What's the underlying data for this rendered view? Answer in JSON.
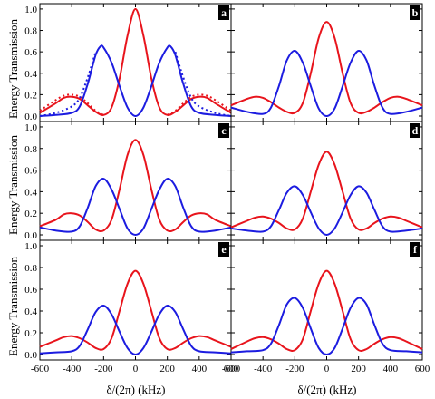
{
  "ylabel": "Energy Transmission",
  "xlabel": "δ/(2π) (kHz)",
  "xticks": [
    -600,
    -400,
    -200,
    0,
    200,
    400,
    600
  ],
  "yticks": [
    "0.0",
    "0.2",
    "0.4",
    "0.6",
    "0.8",
    "1.0"
  ],
  "colors": {
    "red": "#e8141c",
    "blue": "#1c1ce0"
  },
  "chart_data": [
    {
      "type": "line",
      "panel": "a",
      "xlim": [
        -600,
        600
      ],
      "ylim": [
        0,
        1.05
      ],
      "series": [
        {
          "color": "red",
          "style": "solid",
          "x": [
            -600,
            -500,
            -450,
            -400,
            -350,
            -300,
            -250,
            -200,
            -150,
            -100,
            -50,
            0,
            50,
            100,
            150,
            200,
            250,
            300,
            350,
            400,
            450,
            500,
            600
          ],
          "values": [
            0.03,
            0.12,
            0.17,
            0.18,
            0.16,
            0.1,
            0.04,
            0.01,
            0.08,
            0.35,
            0.75,
            1.0,
            0.75,
            0.35,
            0.08,
            0.01,
            0.04,
            0.1,
            0.16,
            0.18,
            0.17,
            0.12,
            0.03
          ]
        },
        {
          "color": "red",
          "style": "dotted",
          "x": [
            -600,
            -500,
            -450,
            -400,
            -350,
            -300,
            -250,
            -200,
            200,
            250,
            300,
            350,
            400,
            450,
            500,
            600
          ],
          "values": [
            0.05,
            0.15,
            0.19,
            0.2,
            0.18,
            0.12,
            0.05,
            0.01,
            0.01,
            0.05,
            0.12,
            0.18,
            0.2,
            0.19,
            0.15,
            0.05
          ]
        },
        {
          "color": "blue",
          "style": "solid",
          "x": [
            -600,
            -500,
            -400,
            -350,
            -300,
            -250,
            -220,
            -200,
            -150,
            -100,
            -50,
            0,
            50,
            100,
            150,
            200,
            220,
            250,
            300,
            350,
            400,
            500,
            600
          ],
          "values": [
            0.0,
            0.01,
            0.03,
            0.09,
            0.3,
            0.57,
            0.65,
            0.64,
            0.5,
            0.28,
            0.08,
            0.0,
            0.08,
            0.28,
            0.5,
            0.64,
            0.65,
            0.57,
            0.3,
            0.09,
            0.03,
            0.01,
            0.0
          ]
        },
        {
          "color": "blue",
          "style": "dotted",
          "x": [
            -600,
            -500,
            -400,
            -350,
            -300,
            -250,
            250,
            300,
            350,
            400,
            500,
            600
          ],
          "values": [
            0.0,
            0.03,
            0.09,
            0.17,
            0.36,
            0.6,
            0.6,
            0.36,
            0.17,
            0.09,
            0.03,
            0.0
          ]
        }
      ]
    },
    {
      "type": "line",
      "panel": "b",
      "xlim": [
        -600,
        600
      ],
      "ylim": [
        0,
        1.05
      ],
      "series": [
        {
          "color": "red",
          "style": "solid",
          "x": [
            -600,
            -500,
            -450,
            -400,
            -350,
            -300,
            -250,
            -200,
            -150,
            -100,
            -50,
            0,
            50,
            100,
            150,
            200,
            250,
            300,
            350,
            400,
            450,
            500,
            600
          ],
          "values": [
            0.1,
            0.16,
            0.18,
            0.17,
            0.13,
            0.08,
            0.04,
            0.03,
            0.12,
            0.4,
            0.73,
            0.88,
            0.73,
            0.4,
            0.12,
            0.03,
            0.04,
            0.08,
            0.13,
            0.17,
            0.18,
            0.16,
            0.1
          ]
        },
        {
          "color": "blue",
          "style": "solid",
          "x": [
            -600,
            -500,
            -400,
            -350,
            -300,
            -250,
            -200,
            -150,
            -100,
            -50,
            0,
            50,
            100,
            150,
            200,
            250,
            300,
            350,
            400,
            500,
            600
          ],
          "values": [
            0.08,
            0.04,
            0.02,
            0.08,
            0.28,
            0.52,
            0.61,
            0.5,
            0.28,
            0.07,
            0.0,
            0.07,
            0.28,
            0.5,
            0.61,
            0.52,
            0.28,
            0.08,
            0.02,
            0.04,
            0.08
          ]
        }
      ]
    },
    {
      "type": "line",
      "panel": "c",
      "xlim": [
        -600,
        600
      ],
      "ylim": [
        0,
        1.05
      ],
      "series": [
        {
          "color": "red",
          "style": "solid",
          "x": [
            -600,
            -500,
            -450,
            -400,
            -350,
            -300,
            -250,
            -200,
            -150,
            -100,
            -50,
            0,
            50,
            100,
            150,
            200,
            250,
            300,
            350,
            400,
            450,
            500,
            600
          ],
          "values": [
            0.08,
            0.14,
            0.19,
            0.2,
            0.18,
            0.12,
            0.05,
            0.04,
            0.14,
            0.42,
            0.74,
            0.88,
            0.74,
            0.42,
            0.14,
            0.04,
            0.05,
            0.12,
            0.18,
            0.2,
            0.19,
            0.14,
            0.08
          ]
        },
        {
          "color": "blue",
          "style": "solid",
          "x": [
            -600,
            -500,
            -400,
            -350,
            -300,
            -250,
            -200,
            -150,
            -100,
            -50,
            0,
            50,
            100,
            150,
            200,
            250,
            300,
            350,
            400,
            500,
            600
          ],
          "values": [
            0.07,
            0.04,
            0.03,
            0.08,
            0.25,
            0.45,
            0.52,
            0.42,
            0.24,
            0.06,
            0.0,
            0.06,
            0.24,
            0.42,
            0.52,
            0.45,
            0.25,
            0.08,
            0.03,
            0.04,
            0.07
          ]
        }
      ]
    },
    {
      "type": "line",
      "panel": "d",
      "xlim": [
        -600,
        600
      ],
      "ylim": [
        0,
        1.05
      ],
      "series": [
        {
          "color": "red",
          "style": "solid",
          "x": [
            -600,
            -500,
            -450,
            -400,
            -350,
            -300,
            -250,
            -200,
            -150,
            -100,
            -50,
            0,
            50,
            100,
            150,
            200,
            250,
            300,
            350,
            400,
            450,
            500,
            600
          ],
          "values": [
            0.07,
            0.13,
            0.16,
            0.17,
            0.15,
            0.11,
            0.06,
            0.05,
            0.15,
            0.4,
            0.65,
            0.77,
            0.65,
            0.4,
            0.15,
            0.05,
            0.06,
            0.11,
            0.15,
            0.17,
            0.16,
            0.13,
            0.07
          ]
        },
        {
          "color": "blue",
          "style": "solid",
          "x": [
            -600,
            -500,
            -400,
            -350,
            -300,
            -250,
            -200,
            -150,
            -100,
            -50,
            0,
            50,
            100,
            150,
            200,
            250,
            300,
            350,
            400,
            500,
            600
          ],
          "values": [
            0.06,
            0.04,
            0.03,
            0.08,
            0.23,
            0.39,
            0.45,
            0.37,
            0.21,
            0.06,
            0.0,
            0.06,
            0.21,
            0.37,
            0.45,
            0.39,
            0.23,
            0.08,
            0.03,
            0.04,
            0.06
          ]
        }
      ]
    },
    {
      "type": "line",
      "panel": "e",
      "xlim": [
        -600,
        600
      ],
      "ylim": [
        0,
        1.05
      ],
      "series": [
        {
          "color": "red",
          "style": "solid",
          "x": [
            -600,
            -500,
            -450,
            -400,
            -350,
            -300,
            -250,
            -200,
            -150,
            -100,
            -50,
            0,
            50,
            100,
            150,
            200,
            250,
            300,
            350,
            400,
            450,
            500,
            600
          ],
          "values": [
            0.07,
            0.13,
            0.16,
            0.17,
            0.15,
            0.11,
            0.06,
            0.05,
            0.15,
            0.4,
            0.65,
            0.77,
            0.65,
            0.4,
            0.15,
            0.05,
            0.06,
            0.11,
            0.15,
            0.17,
            0.16,
            0.13,
            0.07
          ]
        },
        {
          "color": "blue",
          "style": "solid",
          "x": [
            -600,
            -500,
            -400,
            -350,
            -300,
            -250,
            -200,
            -150,
            -100,
            -50,
            0,
            50,
            100,
            150,
            200,
            250,
            300,
            350,
            400,
            500,
            600
          ],
          "values": [
            0.01,
            0.02,
            0.03,
            0.08,
            0.23,
            0.39,
            0.45,
            0.37,
            0.21,
            0.06,
            0.0,
            0.06,
            0.21,
            0.37,
            0.45,
            0.39,
            0.23,
            0.08,
            0.03,
            0.02,
            0.01
          ]
        }
      ]
    },
    {
      "type": "line",
      "panel": "f",
      "xlim": [
        -600,
        600
      ],
      "ylim": [
        0,
        1.05
      ],
      "series": [
        {
          "color": "red",
          "style": "solid",
          "x": [
            -600,
            -500,
            -450,
            -400,
            -350,
            -300,
            -250,
            -200,
            -150,
            -100,
            -50,
            0,
            50,
            100,
            150,
            200,
            250,
            300,
            350,
            400,
            450,
            500,
            600
          ],
          "values": [
            0.05,
            0.12,
            0.15,
            0.16,
            0.14,
            0.1,
            0.05,
            0.04,
            0.14,
            0.4,
            0.65,
            0.77,
            0.65,
            0.4,
            0.14,
            0.04,
            0.05,
            0.1,
            0.14,
            0.16,
            0.15,
            0.12,
            0.05
          ]
        },
        {
          "color": "blue",
          "style": "solid",
          "x": [
            -600,
            -500,
            -400,
            -350,
            -300,
            -250,
            -200,
            -150,
            -100,
            -50,
            0,
            50,
            100,
            150,
            200,
            250,
            300,
            350,
            400,
            500,
            600
          ],
          "values": [
            0.02,
            0.03,
            0.04,
            0.1,
            0.27,
            0.46,
            0.52,
            0.43,
            0.24,
            0.06,
            0.0,
            0.06,
            0.24,
            0.43,
            0.52,
            0.46,
            0.27,
            0.1,
            0.04,
            0.03,
            0.02
          ]
        }
      ]
    }
  ]
}
